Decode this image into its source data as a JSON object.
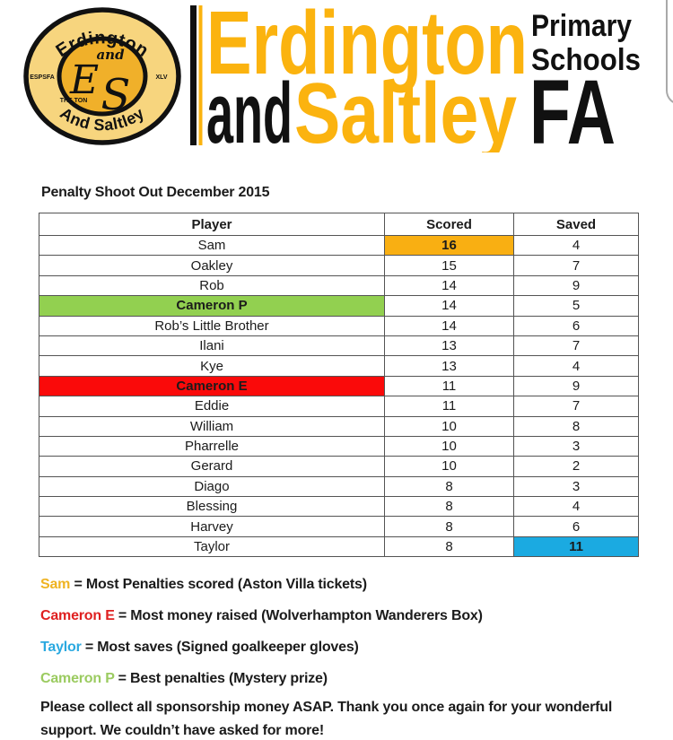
{
  "colors": {
    "amber": "#F9AF12",
    "wordmark_yellow": "#FBB30F",
    "green": "#92D050",
    "red": "#FA0A0A",
    "blue": "#1BAAE1",
    "black": "#1b1b1b",
    "legend_gold": "#EFB322",
    "legend_red": "#DF2020",
    "legend_blue": "#2BA9E0",
    "legend_green": "#9BCB60",
    "logo_outer": "#F7D57E",
    "logo_inner": "#F0B02A"
  },
  "logo": {
    "arc_top": "Erdington",
    "arc_bottom": "And Saltley",
    "left_text": "ESPSFA",
    "right_text": "XLV",
    "banner_text": "THE TON",
    "monogram_and": "and",
    "monogram_e": "E",
    "monogram_s": "S"
  },
  "wordmark": {
    "line1": "Erdington",
    "line2_black": "and",
    "line2_yellow": "Saltley",
    "right1": "Primary",
    "right2": "Schools",
    "right3": "FA"
  },
  "title": "Penalty Shoot Out December 2015",
  "table": {
    "columns": [
      "Player",
      "Scored",
      "Saved"
    ],
    "rows": [
      {
        "player": "Sam",
        "scored": "16",
        "saved": "4",
        "highlight": {
          "cell": "scored",
          "color": "amber"
        }
      },
      {
        "player": "Oakley",
        "scored": "15",
        "saved": "7"
      },
      {
        "player": "Rob",
        "scored": "14",
        "saved": "9"
      },
      {
        "player": "Cameron P",
        "scored": "14",
        "saved": "5",
        "highlight": {
          "cell": "player",
          "color": "green"
        }
      },
      {
        "player": "Rob’s Little Brother",
        "scored": "14",
        "saved": "6"
      },
      {
        "player": "Ilani",
        "scored": "13",
        "saved": "7"
      },
      {
        "player": "Kye",
        "scored": "13",
        "saved": "4"
      },
      {
        "player": "Cameron E",
        "scored": "11",
        "saved": "9",
        "highlight": {
          "cell": "player",
          "color": "red"
        }
      },
      {
        "player": "Eddie",
        "scored": "11",
        "saved": "7"
      },
      {
        "player": "William",
        "scored": "10",
        "saved": "8"
      },
      {
        "player": "Pharrelle",
        "scored": "10",
        "saved": "3"
      },
      {
        "player": "Gerard",
        "scored": "10",
        "saved": "2"
      },
      {
        "player": "Diago",
        "scored": "8",
        "saved": "3"
      },
      {
        "player": "Blessing",
        "scored": "8",
        "saved": "4"
      },
      {
        "player": "Harvey",
        "scored": "8",
        "saved": "6"
      },
      {
        "player": "Taylor",
        "scored": "8",
        "saved": "11",
        "highlight": {
          "cell": "saved",
          "color": "blue"
        }
      }
    ]
  },
  "legend": [
    {
      "name": "Sam",
      "color_key": "legend_gold",
      "text": "= Most Penalties scored (Aston Villa tickets)"
    },
    {
      "name": "Cameron E",
      "color_key": "legend_red",
      "text": "= Most money raised (Wolverhampton Wanderers Box)"
    },
    {
      "name": "Taylor",
      "color_key": "legend_blue",
      "text": "= Most saves (Signed goalkeeper gloves)"
    },
    {
      "name": "Cameron P",
      "color_key": "legend_green",
      "text": "= Best penalties (Mystery prize)"
    }
  ],
  "footer_lines": [
    "Please collect all sponsorship money ASAP. Thank you once again for your wonderful",
    "support. We couldn’t have asked for more!"
  ]
}
